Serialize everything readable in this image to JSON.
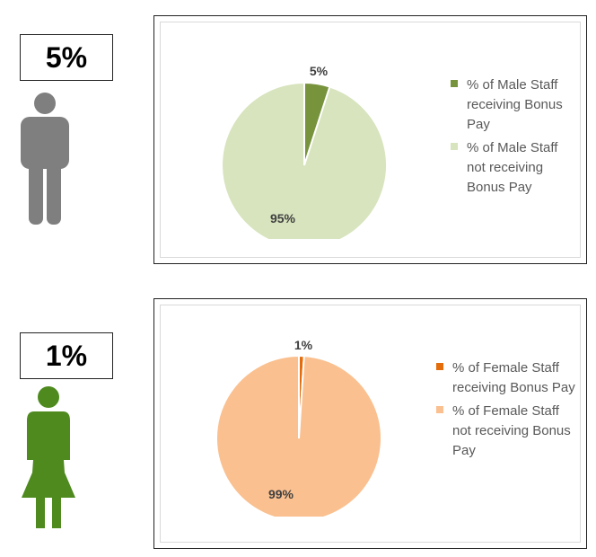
{
  "male": {
    "headline_pct": "5%",
    "legend": [
      {
        "text": "% of Male Staff receiving Bonus Pay",
        "color": "#77933c"
      },
      {
        "text": "% of Male Staff not receiving Bonus Pay",
        "color": "#d7e4bd"
      }
    ],
    "figure_color": "#7f7f7f"
  },
  "female": {
    "headline_pct": "1%",
    "legend": [
      {
        "text": "% of Female Staff receiving Bonus Pay",
        "color": "#e46c0a"
      },
      {
        "text": "% of Female Staff not receiving Bonus Pay",
        "color": "#fac090"
      }
    ],
    "figure_color": "#4e8a1e"
  },
  "chart_data": [
    {
      "type": "pie",
      "categories": [
        "% of Male Staff receiving Bonus Pay",
        "% of Male Staff not receiving Bonus Pay"
      ],
      "values": [
        5,
        95
      ],
      "data_labels": [
        "5%",
        "95%"
      ],
      "colors": [
        "#77933c",
        "#d7e4bd"
      ],
      "legend_position": "right"
    },
    {
      "type": "pie",
      "categories": [
        "% of Female Staff receiving Bonus Pay",
        "% of Female Staff not receiving Bonus Pay"
      ],
      "values": [
        1,
        99
      ],
      "data_labels": [
        "1%",
        "99%"
      ],
      "colors": [
        "#e46c0a",
        "#fac090"
      ],
      "legend_position": "right"
    }
  ]
}
